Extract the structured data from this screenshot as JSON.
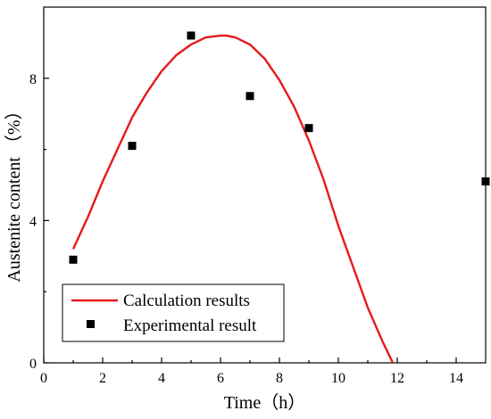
{
  "chart_data": {
    "type": "scatter",
    "title": "",
    "xlabel": "Time（h）",
    "ylabel": "Austenite content （%）",
    "xlim": [
      0,
      15
    ],
    "ylim": [
      0,
      10
    ],
    "x_ticks": [
      0,
      2,
      4,
      6,
      8,
      10,
      12,
      14
    ],
    "y_ticks": [
      0,
      4,
      8
    ],
    "grid": false,
    "legend_position": "bottom-left",
    "series": [
      {
        "name": "Calculation results",
        "kind": "line",
        "color": "#e41a1c",
        "x": [
          1,
          1.5,
          2,
          2.5,
          3,
          3.5,
          4,
          4.5,
          5,
          5.5,
          6,
          6.2,
          6.5,
          7,
          7.5,
          8,
          8.5,
          9,
          9.5,
          10,
          10.5,
          11,
          11.5,
          11.85
        ],
        "y": [
          3.2,
          4.1,
          5.1,
          6.0,
          6.9,
          7.6,
          8.2,
          8.65,
          8.95,
          9.15,
          9.2,
          9.2,
          9.15,
          8.95,
          8.55,
          7.95,
          7.2,
          6.25,
          5.15,
          3.85,
          2.7,
          1.55,
          0.6,
          0.0
        ]
      },
      {
        "name": "Experimental result",
        "kind": "scatter",
        "color": "#000000",
        "x": [
          1,
          3,
          5,
          7,
          9,
          15
        ],
        "y": [
          2.9,
          6.1,
          9.2,
          7.5,
          6.6,
          5.1
        ]
      }
    ]
  }
}
